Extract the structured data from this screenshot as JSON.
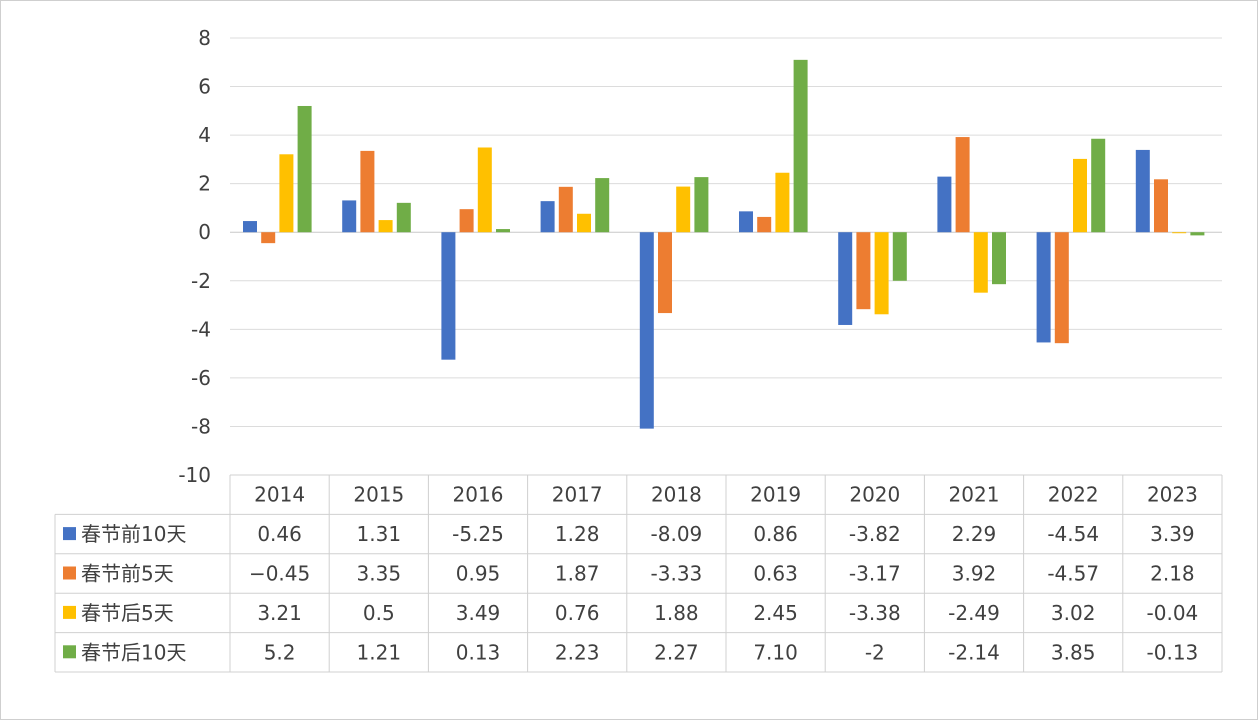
{
  "chart_data": {
    "type": "bar",
    "categories": [
      "2014",
      "2015",
      "2016",
      "2017",
      "2018",
      "2019",
      "2020",
      "2021",
      "2022",
      "2023"
    ],
    "ylim": [
      -10,
      8
    ],
    "yticks": [
      8,
      6,
      4,
      2,
      0,
      -2,
      -4,
      -6,
      -8,
      -10
    ],
    "grid": true,
    "legend": "data-table-left",
    "series": [
      {
        "name": "春节前10天",
        "color": "#4472C4",
        "values": [
          0.46,
          1.31,
          -5.25,
          1.28,
          -8.09,
          0.86,
          -3.82,
          2.29,
          -4.54,
          3.39
        ],
        "labels": [
          "0.46",
          "1.31",
          "-5.25",
          "1.28",
          "-8.09",
          "0.86",
          "-3.82",
          "2.29",
          "-4.54",
          "3.39"
        ]
      },
      {
        "name": "春节前5天",
        "color": "#ED7D31",
        "values": [
          -0.45,
          3.35,
          0.95,
          1.87,
          -3.33,
          0.63,
          -3.17,
          3.92,
          -4.57,
          2.18
        ],
        "labels": [
          "−0.45",
          "3.35",
          "0.95",
          "1.87",
          "-3.33",
          "0.63",
          "-3.17",
          "3.92",
          "-4.57",
          "2.18"
        ]
      },
      {
        "name": "春节后5天",
        "color": "#FFC000",
        "values": [
          3.21,
          0.5,
          3.49,
          0.76,
          1.88,
          2.45,
          -3.38,
          -2.49,
          3.02,
          -0.04
        ],
        "labels": [
          "3.21",
          "0.5",
          "3.49",
          "0.76",
          "1.88",
          "2.45",
          "-3.38",
          "-2.49",
          "3.02",
          "-0.04"
        ]
      },
      {
        "name": "春节后10天",
        "color": "#70AD47",
        "values": [
          5.2,
          1.21,
          0.13,
          2.23,
          2.27,
          7.1,
          -2,
          -2.14,
          3.85,
          -0.13
        ],
        "labels": [
          "5.2",
          "1.21",
          "0.13",
          "2.23",
          "2.27",
          "7.10",
          "-2",
          "-2.14",
          "3.85",
          "-0.13"
        ]
      }
    ]
  }
}
